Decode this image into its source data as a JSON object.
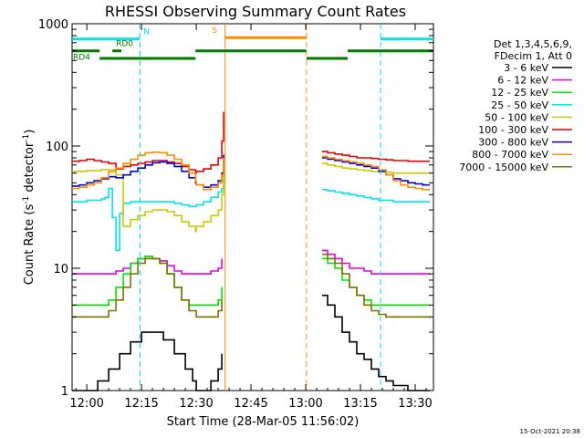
{
  "chart_data": {
    "type": "line",
    "title": "RHESSI Observing Summary Count Rates",
    "xlabel": "Start Time (28-Mar-05 11:56:02)",
    "ylabel_main": "Count Rate (s",
    "ylabel_sup1": "-1",
    "ylabel_mid": " detector",
    "ylabel_sup2": "-1",
    "ylabel_end": ")",
    "y_scale": "log",
    "ylim": [
      1,
      1000
    ],
    "xlim_minutes": [
      -4.033,
      95.0
    ],
    "x_ticks": [
      {
        "value": 0,
        "label": "12:00"
      },
      {
        "value": 15,
        "label": "12:15"
      },
      {
        "value": 30,
        "label": "12:30"
      },
      {
        "value": 45,
        "label": "12:45"
      },
      {
        "value": 60,
        "label": "13:00"
      },
      {
        "value": 75,
        "label": "13:15"
      },
      {
        "value": 90,
        "label": "13:30"
      }
    ],
    "y_ticks": [
      {
        "value": 1,
        "label": "1"
      },
      {
        "value": 10,
        "label": "10"
      },
      {
        "value": 100,
        "label": "100"
      },
      {
        "value": 1000,
        "label": "1000"
      }
    ],
    "timestamp": "15-Oct-2021 20:38",
    "legend": {
      "position": "right",
      "header": [
        "Det 1,3,4,5,6,9,",
        "FDecim 1, Att 0"
      ],
      "entries": [
        {
          "label": "3 - 6 keV",
          "color": "#000000"
        },
        {
          "label": "6 - 12 keV",
          "color": "#e600e6"
        },
        {
          "label": "12 - 25 keV",
          "color": "#00e600"
        },
        {
          "label": "25 - 50 keV",
          "color": "#00e6e6"
        },
        {
          "label": "50 - 100 keV",
          "color": "#cccc00"
        },
        {
          "label": "100 - 300 keV",
          "color": "#e60000"
        },
        {
          "label": "300 - 800 keV",
          "color": "#0000e6"
        },
        {
          "label": "800 - 7000 keV",
          "color": "#ff8c00"
        },
        {
          "label": "7000 - 15000 keV",
          "color": "#807000"
        }
      ]
    },
    "flags": [
      {
        "label": "N",
        "color": "#00e6e6",
        "segments": [
          [
            -4.0,
            14.5
          ],
          [
            80.5,
            95.0
          ]
        ],
        "y": 750
      },
      {
        "label": "S",
        "color": "#ff8c00",
        "segments": [
          [
            37.8,
            60.2
          ]
        ],
        "y": 770
      },
      {
        "label": "RD0",
        "color": "#007a00",
        "segments": [
          [
            7.0,
            9.5
          ]
        ],
        "y": 600
      },
      {
        "label": "RD4",
        "color": "#007a00",
        "segments": [
          [
            -4.0,
            3.5
          ],
          [
            3.5,
            29.8
          ],
          [
            29.8,
            60.2
          ],
          [
            60.2,
            71.5
          ],
          [
            71.5,
            95.0
          ]
        ],
        "ys": [
          600,
          520,
          600,
          520,
          600
        ]
      }
    ],
    "vertical_markers": [
      {
        "x": 14.6,
        "color": "#00e6e6",
        "style": "dashed"
      },
      {
        "x": 80.5,
        "color": "#00e6e6",
        "style": "dashed"
      },
      {
        "x": 60.2,
        "color": "#ff8c00",
        "style": "dashed"
      },
      {
        "x": 37.9,
        "color": "#ff8c00",
        "style": "solid"
      }
    ],
    "series": [
      {
        "name": "3 - 6 keV",
        "color": "#000000",
        "x": [
          -4,
          -2,
          0,
          1,
          3,
          6,
          9,
          12,
          15,
          18,
          21,
          24,
          27,
          29,
          30,
          32,
          34,
          36,
          37
        ],
        "y": [
          1,
          1,
          1,
          1,
          1.2,
          1.5,
          2,
          2.5,
          3,
          3,
          2.6,
          2,
          1.5,
          1.2,
          1,
          1,
          1.2,
          1.5,
          2
        ]
      },
      {
        "name": "6 - 12 keV",
        "color": "#e600e6",
        "x": [
          -4,
          -2,
          0,
          2,
          4,
          6,
          8,
          10,
          12,
          14,
          16,
          18,
          20,
          22,
          24,
          26,
          28,
          30,
          32,
          34,
          36,
          37
        ],
        "y": [
          9,
          9,
          9,
          9,
          9,
          9,
          9.5,
          10,
          11,
          12,
          12.5,
          12,
          11.5,
          10.5,
          9.5,
          9,
          9,
          9,
          9,
          9.5,
          10,
          12
        ]
      },
      {
        "name": "12 - 25 keV",
        "color": "#00e600",
        "x": [
          -4,
          -2,
          0,
          2,
          4,
          6,
          8,
          10,
          12,
          14,
          16,
          18,
          20,
          22,
          24,
          26,
          28,
          30,
          32,
          34,
          36,
          37
        ],
        "y": [
          5,
          5,
          5,
          5,
          5,
          5.5,
          7,
          9,
          11,
          12,
          12.5,
          12,
          11,
          9,
          7,
          5.5,
          5,
          5,
          5,
          5,
          5.5,
          7
        ]
      },
      {
        "name": "25 - 50 keV",
        "color": "#00e6e6",
        "x": [
          -4,
          -2,
          0,
          2,
          4,
          5,
          6,
          7,
          8,
          9,
          10,
          12,
          14,
          16,
          18,
          20,
          22,
          24,
          26,
          28,
          29.8,
          30,
          32,
          34,
          36,
          37,
          37.5
        ],
        "y": [
          35,
          35,
          36,
          36,
          37,
          38,
          45,
          26,
          14,
          28,
          34,
          35,
          35,
          35,
          35,
          35,
          35,
          34,
          33,
          32,
          32,
          33,
          35,
          38,
          42,
          45,
          60
        ]
      },
      {
        "name": "50 - 100 keV",
        "color": "#cccc00",
        "x": [
          -4,
          -2,
          0,
          2,
          4,
          6,
          8,
          10,
          12,
          14,
          16,
          18,
          20,
          22,
          24,
          26,
          28,
          29.8,
          30,
          32,
          34,
          36,
          37,
          37.5
        ],
        "y": [
          62,
          62,
          63,
          63,
          64,
          64,
          58,
          22,
          25,
          27,
          29,
          30,
          30,
          29,
          27,
          24,
          22,
          20,
          22,
          24,
          27,
          30,
          40,
          65
        ]
      },
      {
        "name": "100 - 300 keV",
        "color": "#e60000",
        "x": [
          -4,
          -2,
          0,
          2,
          4,
          6,
          8,
          10,
          12,
          14,
          16,
          18,
          20,
          22,
          24,
          26,
          28,
          29.8,
          30,
          32,
          34,
          36,
          37,
          37.5
        ],
        "y": [
          75,
          76,
          78,
          76,
          74,
          72,
          65,
          68,
          70,
          72,
          74,
          76,
          76,
          74,
          72,
          68,
          64,
          60,
          62,
          65,
          70,
          80,
          110,
          190
        ]
      },
      {
        "name": "300 - 800 keV",
        "color": "#0000e6",
        "x": [
          -4,
          -2,
          0,
          2,
          4,
          6,
          8,
          10,
          12,
          14,
          16,
          18,
          20,
          22,
          24,
          26,
          28,
          29.8,
          30,
          32,
          34,
          36,
          37,
          37.5
        ],
        "y": [
          47,
          48,
          50,
          52,
          54,
          56,
          55,
          58,
          62,
          66,
          70,
          73,
          74,
          72,
          68,
          62,
          55,
          50,
          48,
          46,
          48,
          52,
          60,
          85
        ]
      },
      {
        "name": "800 - 7000 keV",
        "color": "#ff8c00",
        "x": [
          -4,
          -2,
          0,
          2,
          4,
          6,
          8,
          10,
          12,
          14,
          16,
          18,
          20,
          22,
          24,
          26,
          28,
          29.8,
          30,
          32,
          34,
          36,
          37,
          37.5
        ],
        "y": [
          45,
          46,
          48,
          50,
          55,
          62,
          66,
          72,
          78,
          84,
          88,
          89,
          88,
          84,
          78,
          70,
          60,
          52,
          48,
          44,
          46,
          50,
          58,
          80
        ]
      },
      {
        "name": "7000 - 15000 keV",
        "color": "#807000",
        "x": [
          -4,
          -2,
          0,
          2,
          4,
          6,
          8,
          10,
          12,
          14,
          16,
          18,
          20,
          22,
          24,
          26,
          28,
          30,
          32,
          34,
          36,
          37
        ],
        "y": [
          4,
          4,
          4,
          4,
          4,
          4.5,
          5.5,
          7,
          9,
          11,
          12,
          12,
          11,
          9,
          7,
          5.5,
          4.5,
          4,
          4,
          4,
          4.5,
          5.5
        ]
      }
    ],
    "series_post": [
      {
        "name": "3 - 6 keV",
        "color": "#000000",
        "x": [
          64.5,
          66,
          68,
          70,
          72,
          74,
          76,
          78,
          80,
          82,
          84,
          86,
          88,
          90,
          92,
          94
        ],
        "y": [
          6,
          5,
          4,
          3,
          2.5,
          2,
          1.8,
          1.5,
          1.3,
          1.2,
          1.1,
          1.1,
          1,
          1,
          1,
          1
        ]
      },
      {
        "name": "6 - 12 keV",
        "color": "#e600e6",
        "x": [
          64.5,
          66,
          68,
          70,
          72,
          74,
          76,
          78,
          80,
          82,
          84,
          86,
          88,
          90,
          92,
          94
        ],
        "y": [
          14,
          13,
          12,
          11,
          10,
          10,
          9.5,
          9,
          9,
          9,
          9,
          9,
          9,
          9,
          9,
          9
        ]
      },
      {
        "name": "12 - 25 keV",
        "color": "#00e600",
        "x": [
          64.5,
          66,
          68,
          70,
          72,
          74,
          76,
          78,
          80,
          82,
          84,
          86,
          88,
          90,
          92,
          94
        ],
        "y": [
          12,
          11,
          10,
          8,
          7,
          6,
          5.5,
          5,
          5,
          5,
          5,
          5,
          5,
          5,
          5,
          5
        ]
      },
      {
        "name": "25 - 50 keV",
        "color": "#00e6e6",
        "x": [
          64.5,
          66,
          68,
          70,
          72,
          74,
          76,
          78,
          80,
          82,
          84,
          86,
          88,
          90,
          92,
          94
        ],
        "y": [
          44,
          43,
          42,
          41,
          40,
          39,
          38,
          37,
          36,
          36,
          35,
          35,
          35,
          35,
          35,
          35
        ]
      },
      {
        "name": "50 - 100 keV",
        "color": "#cccc00",
        "x": [
          64.5,
          66,
          68,
          70,
          72,
          74,
          76,
          78,
          80,
          82,
          84,
          86,
          88,
          90,
          92,
          94
        ],
        "y": [
          72,
          70,
          68,
          66,
          65,
          64,
          63,
          62,
          62,
          61,
          60,
          60,
          60,
          60,
          60,
          60
        ]
      },
      {
        "name": "100 - 300 keV",
        "color": "#e60000",
        "x": [
          64.5,
          66,
          68,
          70,
          72,
          74,
          76,
          78,
          80,
          82,
          84,
          86,
          88,
          90,
          92,
          94
        ],
        "y": [
          90,
          88,
          86,
          84,
          82,
          80,
          80,
          79,
          78,
          77,
          76,
          76,
          75,
          75,
          75,
          75
        ]
      },
      {
        "name": "300 - 800 keV",
        "color": "#0000e6",
        "x": [
          64.5,
          66,
          68,
          70,
          72,
          74,
          76,
          78,
          80,
          82,
          84,
          86,
          88,
          90,
          92,
          94
        ],
        "y": [
          80,
          78,
          76,
          74,
          72,
          70,
          68,
          66,
          62,
          58,
          54,
          52,
          50,
          49,
          48,
          48
        ]
      },
      {
        "name": "800 - 7000 keV",
        "color": "#ff8c00",
        "x": [
          64.5,
          66,
          68,
          70,
          72,
          74,
          76,
          78,
          80,
          82,
          84,
          86,
          88,
          90,
          92,
          94
        ],
        "y": [
          82,
          80,
          78,
          76,
          74,
          72,
          70,
          68,
          64,
          58,
          52,
          48,
          46,
          45,
          44,
          44
        ]
      },
      {
        "name": "7000 - 15000 keV",
        "color": "#807000",
        "x": [
          64.5,
          66,
          68,
          70,
          72,
          74,
          76,
          78,
          80,
          82,
          84,
          86,
          88,
          90,
          92,
          94
        ],
        "y": [
          13,
          12,
          11,
          9,
          7,
          6,
          5,
          4.5,
          4.2,
          4,
          4,
          4,
          4,
          4,
          4,
          4
        ]
      }
    ]
  }
}
